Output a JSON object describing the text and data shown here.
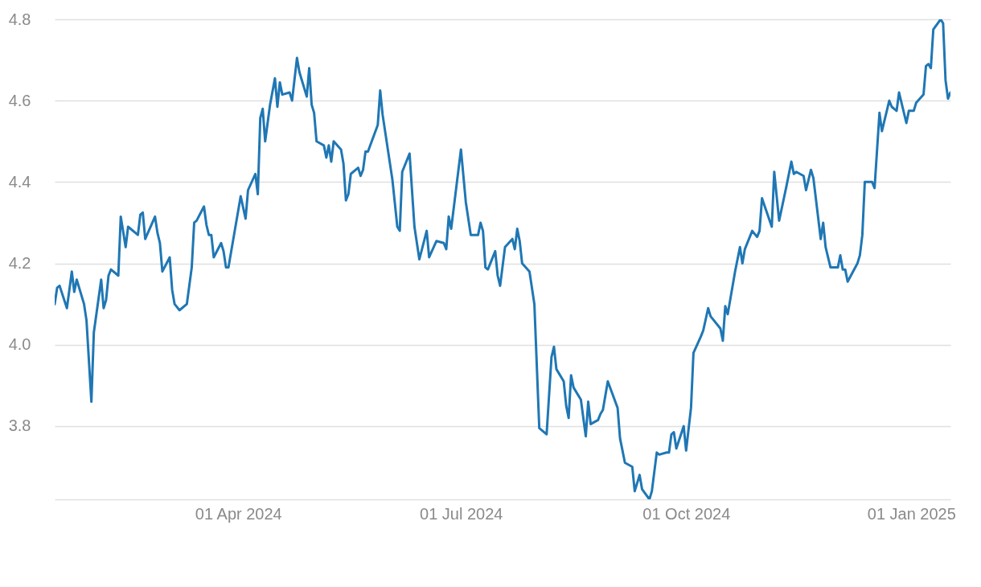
{
  "chart_data": {
    "type": "line",
    "x": [
      "2024-01-17",
      "2024-01-18",
      "2024-01-19",
      "2024-01-22",
      "2024-01-24",
      "2024-01-25",
      "2024-01-26",
      "2024-01-29",
      "2024-01-30",
      "2024-02-01",
      "2024-02-02",
      "2024-02-05",
      "2024-02-06",
      "2024-02-07",
      "2024-02-08",
      "2024-02-09",
      "2024-02-12",
      "2024-02-13",
      "2024-02-15",
      "2024-02-16",
      "2024-02-20",
      "2024-02-21",
      "2024-02-22",
      "2024-02-23",
      "2024-02-27",
      "2024-02-28",
      "2024-02-29",
      "2024-03-01",
      "2024-03-04",
      "2024-03-05",
      "2024-03-06",
      "2024-03-08",
      "2024-03-11",
      "2024-03-13",
      "2024-03-14",
      "2024-03-15",
      "2024-03-18",
      "2024-03-19",
      "2024-03-20",
      "2024-03-21",
      "2024-03-22",
      "2024-03-25",
      "2024-03-26",
      "2024-03-27",
      "2024-03-28",
      "2024-04-02",
      "2024-04-04",
      "2024-04-05",
      "2024-04-08",
      "2024-04-09",
      "2024-04-10",
      "2024-04-11",
      "2024-04-12",
      "2024-04-14",
      "2024-04-16",
      "2024-04-17",
      "2024-04-18",
      "2024-04-19",
      "2024-04-22",
      "2024-04-23",
      "2024-04-25",
      "2024-04-26",
      "2024-04-29",
      "2024-04-30",
      "2024-05-01",
      "2024-05-02",
      "2024-05-03",
      "2024-05-06",
      "2024-05-07",
      "2024-05-08",
      "2024-05-09",
      "2024-05-10",
      "2024-05-13",
      "2024-05-14",
      "2024-05-15",
      "2024-05-16",
      "2024-05-17",
      "2024-05-20",
      "2024-05-21",
      "2024-05-22",
      "2024-05-23",
      "2024-05-24",
      "2024-05-28",
      "2024-05-29",
      "2024-05-30",
      "2024-06-03",
      "2024-06-05",
      "2024-06-06",
      "2024-06-07",
      "2024-06-10",
      "2024-06-12",
      "2024-06-14",
      "2024-06-17",
      "2024-06-18",
      "2024-06-21",
      "2024-06-24",
      "2024-06-25",
      "2024-06-26",
      "2024-06-27",
      "2024-07-01",
      "2024-07-03",
      "2024-07-05",
      "2024-07-08",
      "2024-07-09",
      "2024-07-10",
      "2024-07-11",
      "2024-07-12",
      "2024-07-15",
      "2024-07-16",
      "2024-07-17",
      "2024-07-19",
      "2024-07-22",
      "2024-07-23",
      "2024-07-24",
      "2024-07-25",
      "2024-07-26",
      "2024-07-29",
      "2024-07-31",
      "2024-08-02",
      "2024-08-05",
      "2024-08-07",
      "2024-08-08",
      "2024-08-09",
      "2024-08-12",
      "2024-08-13",
      "2024-08-14",
      "2024-08-15",
      "2024-08-16",
      "2024-08-19",
      "2024-08-21",
      "2024-08-22",
      "2024-08-23",
      "2024-08-26",
      "2024-08-27",
      "2024-08-28",
      "2024-08-30",
      "2024-09-03",
      "2024-09-04",
      "2024-09-06",
      "2024-09-09",
      "2024-09-10",
      "2024-09-12",
      "2024-09-13",
      "2024-09-16",
      "2024-09-17",
      "2024-09-19",
      "2024-09-20",
      "2024-09-23",
      "2024-09-24",
      "2024-09-25",
      "2024-09-26",
      "2024-09-27",
      "2024-09-30",
      "2024-10-01",
      "2024-10-03",
      "2024-10-04",
      "2024-10-07",
      "2024-10-08",
      "2024-10-10",
      "2024-10-11",
      "2024-10-15",
      "2024-10-16",
      "2024-10-17",
      "2024-10-18",
      "2024-10-21",
      "2024-10-23",
      "2024-10-24",
      "2024-10-25",
      "2024-10-28",
      "2024-10-30",
      "2024-10-31",
      "2024-11-01",
      "2024-11-05",
      "2024-11-06",
      "2024-11-08",
      "2024-11-11",
      "2024-11-13",
      "2024-11-14",
      "2024-11-15",
      "2024-11-18",
      "2024-11-19",
      "2024-11-21",
      "2024-11-22",
      "2024-11-25",
      "2024-11-26",
      "2024-11-27",
      "2024-11-29",
      "2024-12-02",
      "2024-12-03",
      "2024-12-04",
      "2024-12-05",
      "2024-12-06",
      "2024-12-10",
      "2024-12-11",
      "2024-12-12",
      "2024-12-13",
      "2024-12-16",
      "2024-12-17",
      "2024-12-19",
      "2024-12-20",
      "2024-12-23",
      "2024-12-24",
      "2024-12-26",
      "2024-12-27",
      "2024-12-30",
      "2024-12-31",
      "2025-01-02",
      "2025-01-03",
      "2025-01-06",
      "2025-01-07",
      "2025-01-08",
      "2025-01-09",
      "2025-01-10",
      "2025-01-13",
      "2025-01-14",
      "2025-01-15",
      "2025-01-16",
      "2025-01-17"
    ],
    "series": [
      {
        "color": "#1f77b4",
        "values": [
          4.1,
          4.14,
          4.145,
          4.09,
          4.18,
          4.13,
          4.16,
          4.1,
          4.06,
          3.86,
          4.03,
          4.16,
          4.09,
          4.11,
          4.17,
          4.185,
          4.17,
          4.315,
          4.24,
          4.29,
          4.27,
          4.32,
          4.325,
          4.26,
          4.315,
          4.275,
          4.25,
          4.18,
          4.215,
          4.135,
          4.1,
          4.085,
          4.1,
          4.19,
          4.3,
          4.305,
          4.34,
          4.295,
          4.27,
          4.27,
          4.215,
          4.25,
          4.23,
          4.19,
          4.19,
          4.365,
          4.31,
          4.38,
          4.42,
          4.37,
          4.557,
          4.58,
          4.5,
          4.59,
          4.655,
          4.585,
          4.645,
          4.615,
          4.62,
          4.6,
          4.705,
          4.67,
          4.61,
          4.68,
          4.59,
          4.57,
          4.5,
          4.49,
          4.46,
          4.49,
          4.45,
          4.5,
          4.48,
          4.445,
          4.355,
          4.37,
          4.42,
          4.435,
          4.415,
          4.43,
          4.475,
          4.475,
          4.54,
          4.625,
          4.565,
          4.405,
          4.29,
          4.28,
          4.425,
          4.47,
          4.29,
          4.21,
          4.28,
          4.215,
          4.255,
          4.25,
          4.235,
          4.315,
          4.285,
          4.48,
          4.35,
          4.27,
          4.27,
          4.3,
          4.28,
          4.19,
          4.185,
          4.23,
          4.17,
          4.145,
          4.24,
          4.26,
          4.235,
          4.285,
          4.255,
          4.2,
          4.18,
          4.1,
          3.795,
          3.78,
          3.97,
          3.995,
          3.94,
          3.91,
          3.85,
          3.82,
          3.925,
          3.895,
          3.865,
          3.775,
          3.86,
          3.805,
          3.815,
          3.83,
          3.84,
          3.91,
          3.845,
          3.77,
          3.71,
          3.7,
          3.64,
          3.68,
          3.645,
          3.62,
          3.64,
          3.735,
          3.73,
          3.735,
          3.735,
          3.78,
          3.785,
          3.745,
          3.8,
          3.74,
          3.845,
          3.98,
          4.02,
          4.035,
          4.09,
          4.07,
          4.04,
          4.01,
          4.095,
          4.075,
          4.18,
          4.24,
          4.2,
          4.235,
          4.28,
          4.265,
          4.28,
          4.36,
          4.29,
          4.425,
          4.305,
          4.39,
          4.45,
          4.42,
          4.425,
          4.415,
          4.38,
          4.43,
          4.41,
          4.26,
          4.3,
          4.24,
          4.19,
          4.19,
          4.22,
          4.185,
          4.185,
          4.155,
          4.2,
          4.22,
          4.27,
          4.4,
          4.4,
          4.385,
          4.57,
          4.525,
          4.6,
          4.585,
          4.575,
          4.62,
          4.545,
          4.575,
          4.575,
          4.595,
          4.615,
          4.685,
          4.69,
          4.68,
          4.775,
          4.8,
          4.79,
          4.65,
          4.605,
          4.62
        ]
      }
    ],
    "xlim": [
      "2024-01-17",
      "2025-01-17"
    ],
    "xticks": [
      {
        "value": "2024-04-01",
        "label": "01 Apr 2024"
      },
      {
        "value": "2024-07-01",
        "label": "01 Jul 2024"
      },
      {
        "value": "2024-10-01",
        "label": "01 Oct 2024"
      },
      {
        "value": "2025-01-01",
        "label": "01 Jan 2025"
      }
    ],
    "yticks": [
      3.8,
      {
        "value": 4,
        "label": "4.0"
      },
      4.2,
      4.4,
      4.6,
      4.8
    ],
    "ylim": [
      3.62,
      4.8
    ],
    "grid": "y"
  }
}
